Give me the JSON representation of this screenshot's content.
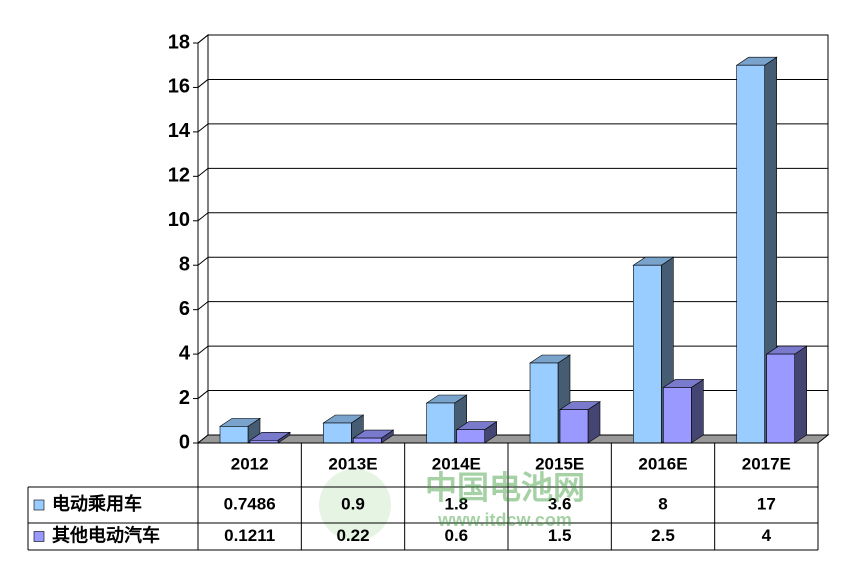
{
  "chart_data": {
    "type": "bar3d",
    "categories": [
      "2012",
      "2013E",
      "2014E",
      "2015E",
      "2016E",
      "2017E"
    ],
    "series": [
      {
        "name": "电动乘用车",
        "color": "#99ccff",
        "values": [
          0.7486,
          0.9,
          1.8,
          3.6,
          8,
          17
        ]
      },
      {
        "name": "其他电动汽车",
        "color": "#9999ff",
        "values": [
          0.1211,
          0.22,
          0.6,
          1.5,
          2.5,
          4
        ]
      }
    ],
    "ylim": [
      0,
      18
    ],
    "yticks": [
      0,
      2,
      4,
      6,
      8,
      10,
      12,
      14,
      16,
      18
    ],
    "grid": true,
    "watermark": [
      "中国电池网",
      "www.itdcw.com"
    ]
  }
}
